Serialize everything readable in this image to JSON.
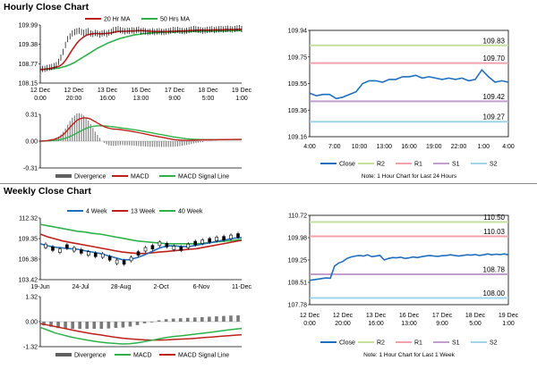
{
  "titles": {
    "hourly": "Hourly Close Chart",
    "weekly": "Weekly Close Chart"
  },
  "colors": {
    "ma_short": "#c0201a",
    "ma_long": "#2db24a",
    "close": "#1f6fbf",
    "r2": "#c6df9c",
    "r1": "#f2a2ad",
    "s1": "#c39fd0",
    "s2": "#9fd4ea",
    "sep": "#8a8a8a"
  },
  "chart_data": [
    {
      "id": "hourly_price",
      "type": "line",
      "title": "Hourly Close Chart",
      "legend": [
        "20 Hr MA",
        "50 Hrs MA"
      ],
      "y_ticks": [
        "109.99",
        "109.38",
        "108.77",
        "108.15"
      ],
      "ylim": [
        108.15,
        110.2
      ],
      "x_ticks": [
        [
          "12 Dec",
          "0:00"
        ],
        [
          "12 Dec",
          "20:00"
        ],
        [
          "13 Dec",
          "16:00"
        ],
        [
          "16 Dec",
          "13:00"
        ],
        [
          "17 Dec",
          "9:00"
        ],
        [
          "18 Dec",
          "5:00"
        ],
        [
          "19 Dec",
          "1:00"
        ]
      ],
      "series": [
        {
          "name": "Close",
          "values": [
            108.64,
            108.65,
            108.65,
            108.68,
            108.7,
            108.72,
            108.75,
            108.78,
            108.9,
            109.05,
            109.25,
            109.5,
            109.7,
            109.8,
            109.9,
            109.95,
            109.98,
            110,
            109.95,
            109.92,
            109.96,
            109.98,
            109.9,
            109.88,
            109.92,
            109.9,
            109.86,
            109.9,
            109.92,
            109.88,
            109.93,
            109.96,
            110.02,
            110.03,
            110.05,
            110.02,
            110.0,
            109.98,
            110.0,
            109.99,
            110.01,
            110.0,
            110.02,
            110.04,
            109.98,
            110.0,
            109.97,
            109.95,
            109.96,
            109.98,
            109.95,
            109.97,
            109.98,
            109.96,
            109.95,
            109.97,
            109.98,
            110.0,
            110.02,
            110.01,
            110.03,
            110.0,
            109.99,
            109.98,
            110.0,
            110.02,
            110.04,
            110.06,
            110.05,
            110.03,
            110.02,
            110.0,
            110.01,
            110.03,
            110.04,
            110.05,
            110.02,
            110.04,
            110.05,
            110.06,
            110.04,
            110.06,
            110.07,
            110.05,
            110.04,
            110.06,
            110.08,
            110.09,
            110.06
          ]
        },
        {
          "name": "20 Hr MA",
          "values": [
            108.62,
            108.63,
            108.64,
            108.65,
            108.66,
            108.68,
            108.7,
            108.72,
            108.74,
            108.78,
            108.85,
            108.95,
            109.07,
            109.2,
            109.33,
            109.45,
            109.56,
            109.65,
            109.72,
            109.78,
            109.83,
            109.86,
            109.88,
            109.89,
            109.9,
            109.9,
            109.89,
            109.89,
            109.9,
            109.9,
            109.91,
            109.92,
            109.94,
            109.96,
            109.97,
            109.98,
            109.98,
            109.98,
            109.98,
            109.99,
            109.99,
            109.99,
            110,
            110,
            110,
            110,
            109.99,
            109.99,
            109.98,
            109.98,
            109.97,
            109.97,
            109.97,
            109.97,
            109.97,
            109.97,
            109.97,
            109.98,
            109.98,
            109.98,
            109.99,
            109.99,
            109.99,
            109.99,
            110,
            110,
            110.01,
            110.01,
            110.02,
            110.02,
            110.02,
            110.02,
            110.02,
            110.02,
            110.02,
            110.02,
            110.03,
            110.03,
            110.03,
            110.03,
            110.03,
            110.04,
            110.04,
            110.04,
            110.04,
            110.04,
            110.05,
            110.05,
            110.05
          ]
        },
        {
          "name": "50 Hrs MA",
          "values": [
            108.64,
            108.64,
            108.64,
            108.64,
            108.65,
            108.65,
            108.66,
            108.67,
            108.68,
            108.7,
            108.72,
            108.74,
            108.77,
            108.8,
            108.84,
            108.88,
            108.93,
            108.98,
            109.03,
            109.08,
            109.13,
            109.18,
            109.23,
            109.28,
            109.33,
            109.38,
            109.42,
            109.46,
            109.5,
            109.54,
            109.58,
            109.61,
            109.64,
            109.67,
            109.7,
            109.73,
            109.75,
            109.77,
            109.79,
            109.81,
            109.83,
            109.85,
            109.86,
            109.87,
            109.88,
            109.89,
            109.9,
            109.91,
            109.92,
            109.92,
            109.93,
            109.93,
            109.94,
            109.94,
            109.94,
            109.95,
            109.95,
            109.95,
            109.95,
            109.95,
            109.96,
            109.96,
            109.96,
            109.96,
            109.96,
            109.97,
            109.97,
            109.97,
            109.97,
            109.97,
            109.98,
            109.98,
            109.98,
            109.98,
            109.98,
            109.98,
            109.98,
            109.99,
            109.99,
            109.99,
            109.99,
            109.99,
            109.99,
            110,
            110,
            110,
            110,
            110,
            110
          ]
        }
      ]
    },
    {
      "id": "hourly_macd",
      "type": "line",
      "legend": [
        "Divergence",
        "MACD",
        "MACD Signal Line"
      ],
      "y_ticks": [
        "0.31",
        "0.00",
        "-0.31"
      ],
      "ylim": [
        -0.31,
        0.31
      ],
      "series": [
        {
          "name": "MACD",
          "values": [
            0,
            0.002,
            0.004,
            0.006,
            0.01,
            0.015,
            0.02,
            0.03,
            0.04,
            0.055,
            0.075,
            0.1,
            0.13,
            0.16,
            0.19,
            0.215,
            0.24,
            0.255,
            0.265,
            0.27,
            0.27,
            0.265,
            0.255,
            0.24,
            0.225,
            0.21,
            0.195,
            0.18,
            0.168,
            0.158,
            0.15,
            0.145,
            0.14,
            0.138,
            0.136,
            0.134,
            0.13,
            0.126,
            0.122,
            0.118,
            0.113,
            0.108,
            0.103,
            0.098,
            0.093,
            0.088,
            0.082,
            0.076,
            0.07,
            0.065,
            0.06,
            0.055,
            0.05,
            0.045,
            0.04,
            0.035,
            0.03,
            0.025,
            0.02,
            0.017,
            0.014,
            0.012,
            0.01,
            0.009,
            0.008,
            0.008,
            0.009,
            0.01,
            0.011,
            0.012,
            0.013,
            0.014,
            0.015,
            0.015,
            0.016,
            0.016,
            0.017,
            0.017,
            0.018,
            0.018,
            0.018,
            0.019,
            0.019,
            0.019,
            0.02,
            0.02,
            0.02,
            0.02,
            0.02
          ]
        },
        {
          "name": "MACD Signal Line",
          "values": [
            0,
            0.001,
            0.002,
            0.003,
            0.004,
            0.006,
            0.008,
            0.011,
            0.015,
            0.02,
            0.026,
            0.034,
            0.043,
            0.054,
            0.066,
            0.08,
            0.094,
            0.108,
            0.122,
            0.135,
            0.147,
            0.157,
            0.165,
            0.171,
            0.175,
            0.177,
            0.178,
            0.178,
            0.177,
            0.175,
            0.172,
            0.169,
            0.165,
            0.162,
            0.158,
            0.155,
            0.151,
            0.148,
            0.144,
            0.14,
            0.136,
            0.132,
            0.128,
            0.124,
            0.12,
            0.115,
            0.11,
            0.105,
            0.1,
            0.095,
            0.09,
            0.085,
            0.08,
            0.075,
            0.07,
            0.065,
            0.06,
            0.055,
            0.05,
            0.046,
            0.042,
            0.038,
            0.034,
            0.031,
            0.028,
            0.026,
            0.024,
            0.022,
            0.021,
            0.02,
            0.019,
            0.019,
            0.018,
            0.018,
            0.018,
            0.018,
            0.018,
            0.018,
            0.018,
            0.018,
            0.018,
            0.018,
            0.018,
            0.019,
            0.019,
            0.019,
            0.019,
            0.02,
            0.02
          ]
        }
      ]
    },
    {
      "id": "hourly_levels",
      "type": "line",
      "y_ticks": [
        "109.94",
        "109.75",
        "109.55",
        "109.36",
        "109.16"
      ],
      "ylim": [
        109.16,
        109.94
      ],
      "x_ticks": [
        "4:00",
        "7:00",
        "10:00",
        "13:00",
        "16:00",
        "19:00",
        "22:00",
        "1:00",
        "4:00"
      ],
      "levels": [
        {
          "name": "R2",
          "value": 109.83,
          "label": "109.83"
        },
        {
          "name": "R1",
          "value": 109.7,
          "label": "109.70"
        },
        {
          "name": "S1",
          "value": 109.42,
          "label": "109.42"
        },
        {
          "name": "S2",
          "value": 109.27,
          "label": "109.27"
        }
      ],
      "series": [
        {
          "name": "Close",
          "values": [
            109.48,
            109.46,
            109.47,
            109.47,
            109.44,
            109.45,
            109.47,
            109.49,
            109.55,
            109.57,
            109.57,
            109.56,
            109.58,
            109.58,
            109.6,
            109.6,
            109.61,
            109.59,
            109.6,
            109.59,
            109.58,
            109.59,
            109.58,
            109.59,
            109.57,
            109.58,
            109.65,
            109.6,
            109.56,
            109.57,
            109.56
          ]
        }
      ],
      "legend": [
        "Close",
        "R2",
        "R1",
        "S1",
        "S2"
      ],
      "note": "Note: 1 Hour Chart for Last 24 Hours"
    },
    {
      "id": "weekly_price",
      "type": "line",
      "title": "Weekly Close Chart",
      "legend": [
        "4 Week",
        "13 Week",
        "40 Week"
      ],
      "y_ticks": [
        "112.32",
        "109.35",
        "106.38",
        "103.42"
      ],
      "ylim": [
        103.42,
        112.32
      ],
      "x_ticks": [
        "19-Jun",
        "24-Jul",
        "28-Aug",
        "2-Oct",
        "6-Nov",
        "11-Dec"
      ],
      "series": [
        {
          "name": "Close",
          "values": [
            108.3,
            107.9,
            107.6,
            108.2,
            107.8,
            107.5,
            107.2,
            107.0,
            106.9,
            106.5,
            106.0,
            105.9,
            106.4,
            107.2,
            107.8,
            108.1,
            108.6,
            108.4,
            108.0,
            107.9,
            108.3,
            108.7,
            108.9,
            109.1,
            109.3,
            109.4,
            109.6,
            109.8
          ]
        },
        {
          "name": "4 Week",
          "values": [
            108.6,
            108.3,
            108.1,
            108.0,
            107.9,
            107.8,
            107.6,
            107.4,
            107.2,
            106.9,
            106.6,
            106.3,
            106.3,
            106.6,
            107.0,
            107.5,
            108.0,
            108.3,
            108.3,
            108.2,
            108.2,
            108.4,
            108.6,
            108.8,
            109.0,
            109.2,
            109.4,
            109.5
          ]
        },
        {
          "name": "13 Week",
          "values": [
            110.0,
            109.6,
            109.3,
            109.0,
            108.8,
            108.6,
            108.4,
            108.2,
            108.0,
            107.8,
            107.6,
            107.4,
            107.3,
            107.2,
            107.2,
            107.3,
            107.4,
            107.5,
            107.6,
            107.7,
            107.8,
            107.9,
            108.1,
            108.3,
            108.5,
            108.7,
            108.9,
            109.1
          ]
        },
        {
          "name": "40 Week",
          "values": [
            111.4,
            111.2,
            111.0,
            110.8,
            110.6,
            110.4,
            110.3,
            110.1,
            110.0,
            109.8,
            109.6,
            109.4,
            109.2,
            109.0,
            108.9,
            108.8,
            108.7,
            108.6,
            108.6,
            108.6,
            108.6,
            108.6,
            108.7,
            108.8,
            108.9,
            109.0,
            109.1,
            109.2
          ]
        }
      ]
    },
    {
      "id": "weekly_macd",
      "type": "line",
      "legend": [
        "Divergence",
        "MACD",
        "MACD Signal Line"
      ],
      "y_ticks": [
        "1.32",
        "0.00",
        "-1.32"
      ],
      "ylim": [
        -1.32,
        1.32
      ],
      "series": [
        {
          "name": "MACD",
          "values": [
            -0.3,
            -0.45,
            -0.6,
            -0.7,
            -0.8,
            -0.88,
            -0.95,
            -1.02,
            -1.08,
            -1.12,
            -1.15,
            -1.18,
            -1.17,
            -1.12,
            -1.05,
            -0.98,
            -0.9,
            -0.83,
            -0.78,
            -0.74,
            -0.7,
            -0.65,
            -0.6,
            -0.55,
            -0.5,
            -0.45,
            -0.4,
            -0.36
          ]
        },
        {
          "name": "MACD Signal Line",
          "values": [
            -0.1,
            -0.18,
            -0.26,
            -0.34,
            -0.42,
            -0.5,
            -0.57,
            -0.64,
            -0.7,
            -0.76,
            -0.82,
            -0.87,
            -0.91,
            -0.94,
            -0.96,
            -0.97,
            -0.97,
            -0.96,
            -0.94,
            -0.92,
            -0.9,
            -0.87,
            -0.84,
            -0.81,
            -0.78,
            -0.75,
            -0.72,
            -0.69
          ]
        }
      ]
    },
    {
      "id": "weekly_levels",
      "type": "line",
      "y_ticks": [
        "110.72",
        "109.98",
        "109.25",
        "108.51",
        "107.78"
      ],
      "ylim": [
        107.78,
        110.72
      ],
      "x_ticks": [
        [
          "12 Dec",
          "0:00"
        ],
        [
          "12 Dec",
          "20:00"
        ],
        [
          "13 Dec",
          "16:00"
        ],
        [
          "16 Dec",
          "13:00"
        ],
        [
          "17 Dec",
          "9:00"
        ],
        [
          "18 Dec",
          "5:00"
        ],
        [
          "19 Dec",
          "1:00"
        ]
      ],
      "levels": [
        {
          "name": "R2",
          "value": 110.5,
          "label": "110.50"
        },
        {
          "name": "R1",
          "value": 110.03,
          "label": "110.03"
        },
        {
          "name": "S1",
          "value": 108.78,
          "label": "108.78"
        },
        {
          "name": "S2",
          "value": 108.0,
          "label": "108.00"
        }
      ],
      "series": [
        {
          "name": "Close",
          "values": [
            108.58,
            108.6,
            108.62,
            108.64,
            108.66,
            108.65,
            109.05,
            109.15,
            109.2,
            109.3,
            109.35,
            109.38,
            109.4,
            109.38,
            109.42,
            109.36,
            109.38,
            109.4,
            109.25,
            109.3,
            109.33,
            109.32,
            109.34,
            109.3,
            109.32,
            109.35,
            109.33,
            109.36,
            109.38,
            109.4,
            109.38,
            109.37,
            109.39,
            109.4,
            109.42,
            109.4,
            109.38,
            109.4,
            109.42,
            109.41,
            109.43,
            109.4,
            109.42,
            109.45,
            109.42,
            109.44,
            109.43,
            109.45,
            109.42
          ]
        }
      ],
      "legend": [
        "Close",
        "R2",
        "R1",
        "S1",
        "S2"
      ],
      "note": "Note: 1 Hour Chart for Last 1 Week"
    }
  ]
}
